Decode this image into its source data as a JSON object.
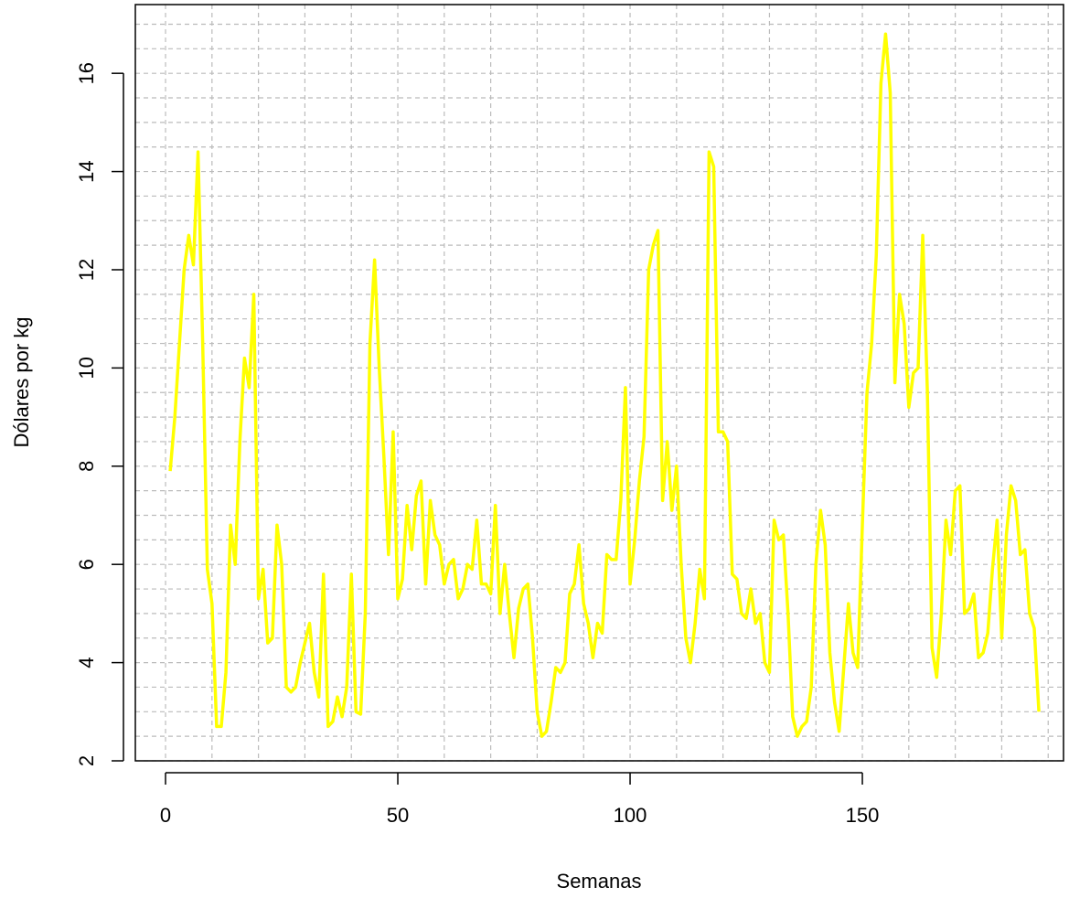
{
  "chart_data": {
    "type": "line",
    "x_label": "Semanas",
    "y_label": "Dólares por kg",
    "x": [
      1,
      2,
      3,
      4,
      5,
      6,
      7,
      8,
      9,
      10,
      11,
      12,
      13,
      14,
      15,
      16,
      17,
      18,
      19,
      20,
      21,
      22,
      23,
      24,
      25,
      26,
      27,
      28,
      29,
      30,
      31,
      32,
      33,
      34,
      35,
      36,
      37,
      38,
      39,
      40,
      41,
      42,
      43,
      44,
      45,
      46,
      47,
      48,
      49,
      50,
      51,
      52,
      53,
      54,
      55,
      56,
      57,
      58,
      59,
      60,
      61,
      62,
      63,
      64,
      65,
      66,
      67,
      68,
      69,
      70,
      71,
      72,
      73,
      74,
      75,
      76,
      77,
      78,
      79,
      80,
      81,
      82,
      83,
      84,
      85,
      86,
      87,
      88,
      89,
      90,
      91,
      92,
      93,
      94,
      95,
      96,
      97,
      98,
      99,
      100,
      101,
      102,
      103,
      104,
      105,
      106,
      107,
      108,
      109,
      110,
      111,
      112,
      113,
      114,
      115,
      116,
      117,
      118,
      119,
      120,
      121,
      122,
      123,
      124,
      125,
      126,
      127,
      128,
      129,
      130,
      131,
      132,
      133,
      134,
      135,
      136,
      137,
      138,
      139,
      140,
      141,
      142,
      143,
      144,
      145,
      146,
      147,
      148,
      149,
      150,
      151,
      152,
      153,
      154,
      155,
      156,
      157,
      158,
      159,
      160,
      161,
      162,
      163,
      164,
      165,
      166,
      167,
      168,
      169,
      170,
      171,
      172,
      173,
      174,
      175,
      176,
      177,
      178,
      179,
      180,
      181,
      182,
      183,
      184,
      185,
      186,
      187,
      188
    ],
    "series": [
      {
        "color": "#ffff00",
        "values": [
          7.9,
          9.0,
          10.5,
          12.0,
          12.7,
          12.1,
          14.4,
          10.5,
          5.9,
          5.2,
          2.7,
          2.7,
          3.8,
          6.8,
          6.0,
          8.5,
          10.2,
          9.6,
          11.5,
          5.3,
          5.9,
          4.4,
          4.5,
          6.8,
          6.0,
          3.5,
          3.4,
          3.5,
          4.0,
          4.4,
          4.8,
          3.8,
          3.3,
          5.8,
          2.7,
          2.8,
          3.3,
          2.9,
          3.5,
          5.8,
          3.0,
          2.95,
          5.0,
          10.5,
          12.2,
          10.0,
          8.2,
          6.2,
          8.7,
          5.3,
          5.7,
          7.2,
          6.3,
          7.4,
          7.7,
          5.6,
          7.3,
          6.6,
          6.4,
          5.6,
          6.0,
          6.1,
          5.3,
          5.5,
          6.0,
          5.9,
          6.9,
          5.6,
          5.6,
          5.4,
          7.2,
          5.0,
          6.0,
          5.0,
          4.1,
          5.1,
          5.5,
          5.6,
          4.5,
          3.0,
          2.5,
          2.6,
          3.2,
          3.9,
          3.8,
          4.0,
          5.4,
          5.6,
          6.4,
          5.2,
          4.8,
          4.1,
          4.8,
          4.6,
          6.2,
          6.1,
          6.1,
          7.3,
          9.6,
          5.6,
          6.5,
          7.7,
          8.6,
          12.0,
          12.5,
          12.8,
          7.3,
          8.5,
          7.1,
          8.0,
          6.0,
          4.5,
          4.0,
          4.8,
          5.9,
          5.3,
          14.4,
          14.1,
          8.7,
          8.7,
          8.5,
          5.8,
          5.7,
          5.0,
          4.9,
          5.5,
          4.8,
          5.0,
          4.0,
          3.8,
          6.9,
          6.5,
          6.6,
          5.0,
          2.9,
          2.5,
          2.7,
          2.8,
          3.5,
          6.0,
          7.1,
          6.4,
          4.2,
          3.2,
          2.6,
          3.9,
          5.2,
          4.2,
          3.9,
          6.8,
          9.5,
          10.5,
          12.3,
          15.8,
          16.8,
          15.6,
          9.7,
          11.5,
          10.9,
          9.2,
          9.9,
          10.0,
          12.7,
          9.5,
          4.3,
          3.7,
          5.0,
          6.9,
          6.2,
          7.5,
          7.6,
          5.0,
          5.1,
          5.4,
          4.1,
          4.2,
          4.6,
          5.9,
          6.9,
          4.5,
          6.6,
          7.6,
          7.3,
          6.2,
          6.3,
          5.0,
          4.7,
          3.0
        ]
      }
    ],
    "xlim": [
      -6.5,
      193.3
    ],
    "ylim": [
      2.0,
      17.4
    ],
    "xticks": [
      0,
      50,
      100,
      150
    ],
    "yticks": [
      2,
      4,
      6,
      8,
      10,
      12,
      14,
      16
    ],
    "grid": true,
    "xgrid": [
      0,
      10,
      20,
      30,
      40,
      50,
      60,
      70,
      80,
      90,
      100,
      110,
      120,
      130,
      140,
      150,
      160,
      170,
      180,
      190
    ],
    "ygrid": [
      2,
      2.5,
      3,
      3.5,
      4,
      4.5,
      5,
      5.5,
      6,
      6.5,
      7,
      7.5,
      8,
      8.5,
      9,
      9.5,
      10,
      10.5,
      11,
      11.5,
      12,
      12.5,
      13,
      13.5,
      14,
      14.5,
      15,
      15.5,
      16,
      16.5,
      17
    ]
  }
}
